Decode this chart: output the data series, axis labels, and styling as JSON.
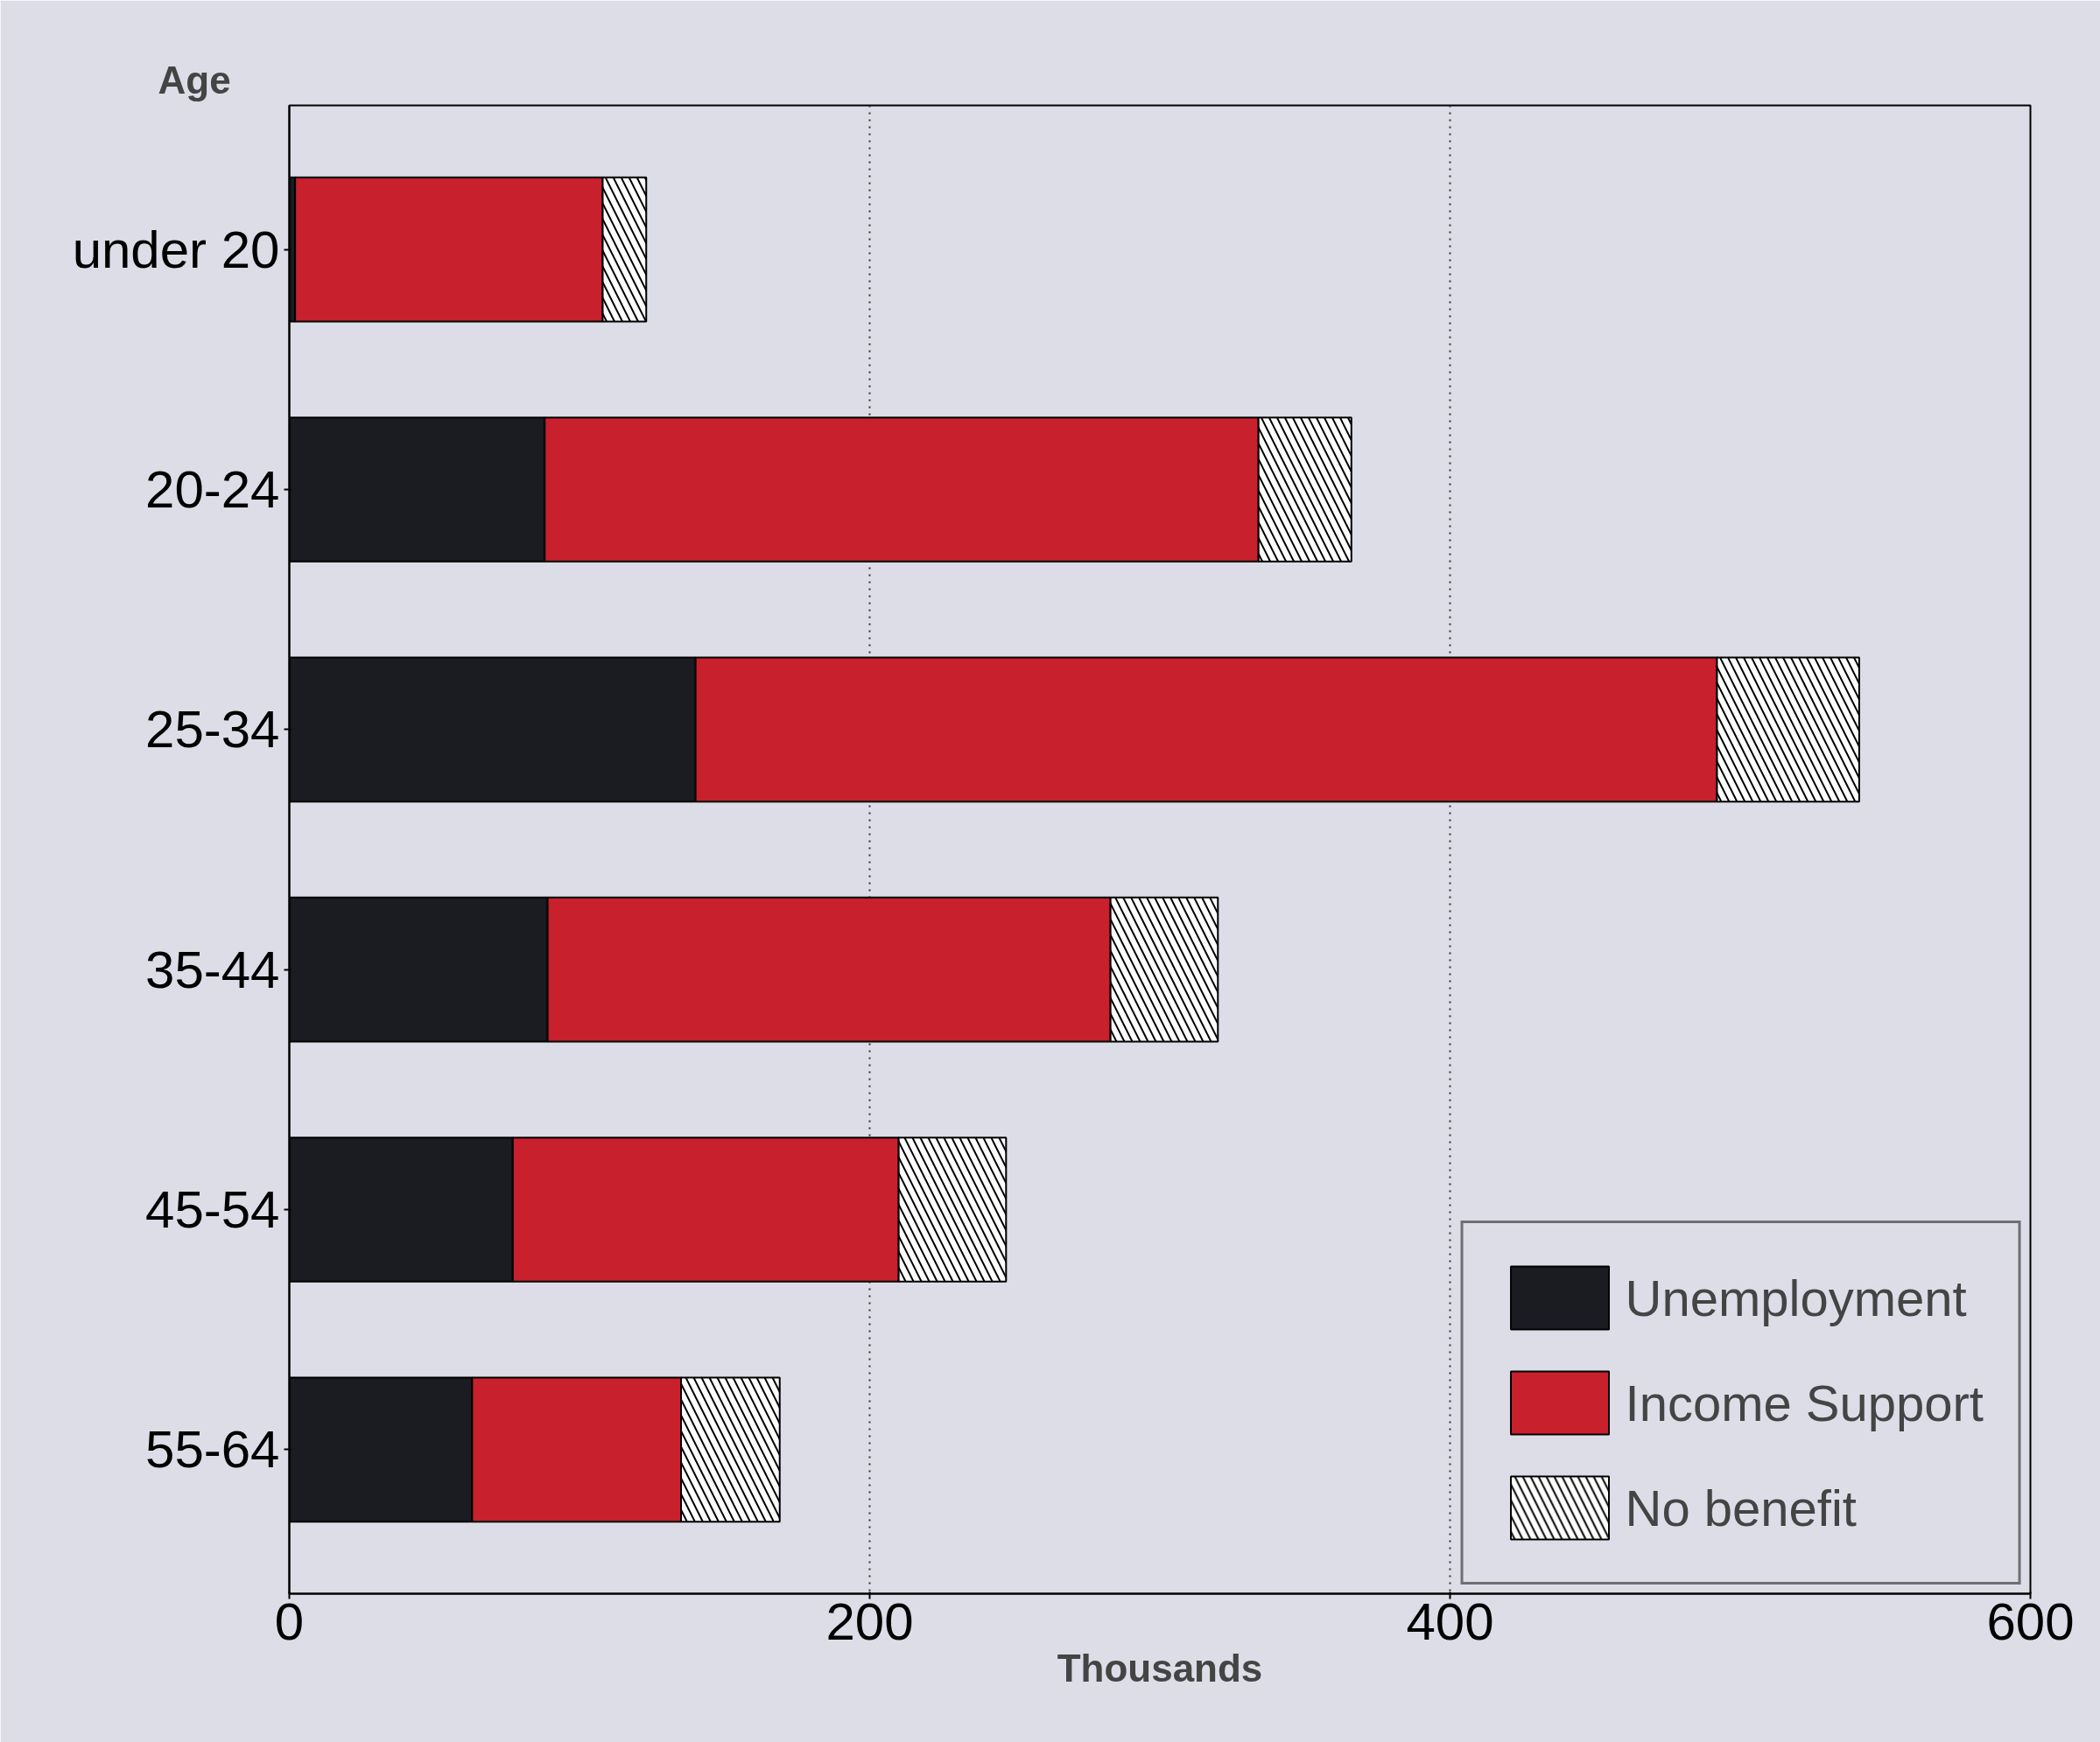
{
  "chart_data": {
    "type": "bar",
    "orientation": "horizontal",
    "stacked": true,
    "ylabel": "Age",
    "xlabel": "Thousands",
    "categories": [
      "under 20",
      "20-24",
      "25-34",
      "35-44",
      "45-54",
      "55-64"
    ],
    "series": [
      {
        "name": "Unemployment",
        "color": "#1b1b22",
        "values": [
          2,
          88,
          140,
          89,
          77,
          63
        ]
      },
      {
        "name": "Income Support",
        "color": "#c8202c",
        "values": [
          106,
          246,
          352,
          194,
          133,
          72
        ]
      },
      {
        "name": "No benefit",
        "color": "#ffffff",
        "values": [
          15,
          32,
          49,
          37,
          37,
          34
        ]
      }
    ],
    "xlim": [
      0,
      600
    ],
    "xticks": [
      0,
      200,
      400,
      600
    ],
    "grid": "x",
    "legend": "bottom right"
  }
}
